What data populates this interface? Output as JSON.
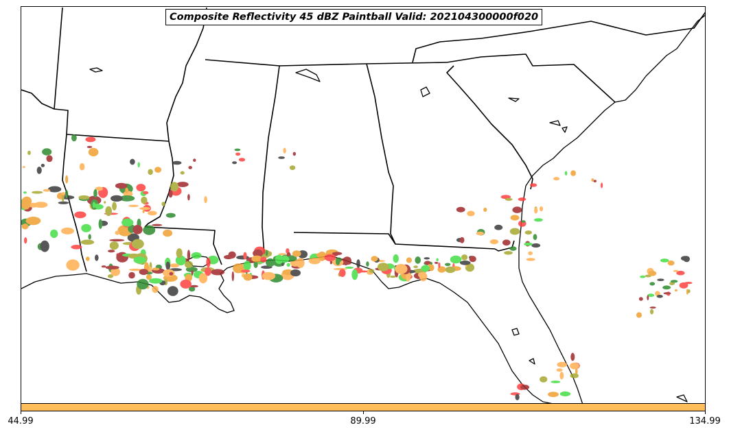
{
  "title": "Composite Reflectivity 45 dBZ Paintball Valid: 202104300000f020",
  "colorbar": {
    "color": "#ffbe5a",
    "ticks": [
      "44.99",
      "89.99",
      "134.99"
    ]
  },
  "map": {
    "region": "Southeastern United States and Gulf of Mexico coast",
    "paintball_colors": [
      "#ff4040",
      "#a0282a",
      "#3a3a3a",
      "#2e8b2e",
      "#44dd44",
      "#a8a830",
      "#f0a030",
      "#ffb050"
    ]
  }
}
